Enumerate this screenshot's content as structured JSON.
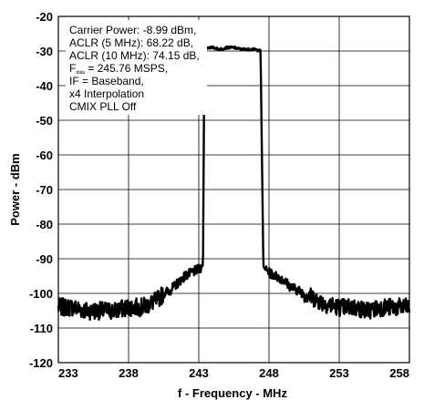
{
  "chart_data": {
    "type": "line",
    "title": "",
    "xlabel": "f - Frequency - MHz",
    "ylabel": "Power - dBm",
    "xlim": [
      233,
      258
    ],
    "ylim": [
      -120,
      -20
    ],
    "xticks": [
      "233",
      "238",
      "243",
      "248",
      "253",
      "258"
    ],
    "yticks": [
      "-20",
      "-30",
      "-40",
      "-50",
      "-60",
      "-70",
      "-80",
      "-90",
      "-100",
      "-110",
      "-120"
    ],
    "grid": true,
    "annotation": {
      "carrier_power": "Carrier Power: -8.99 dBm,",
      "aclr5": "ACLR (5 MHz): 68.22 dB,",
      "aclr10": "ACLR (10 MHz): 74.15 dB,",
      "fdata_prefix": "F",
      "fdata_sub": "data",
      "fdata_rest": " = 245.76 MSPS,",
      "if": "IF = Baseband,",
      "interp": "x4 Interpolation",
      "cmix": "CMIX  PLL Off"
    },
    "series": [
      {
        "x": [
          233,
          234,
          235,
          236,
          237,
          238,
          239,
          239.5,
          240,
          240.5,
          241,
          241.5,
          242,
          242.5,
          243,
          243.3,
          243.4,
          243.6,
          244,
          244.5,
          245,
          245.5,
          246,
          246.5,
          247,
          247.4,
          247.6,
          247.7,
          248,
          248.5,
          249,
          249.5,
          250,
          250.5,
          251,
          251.5,
          252,
          253,
          254,
          255,
          256,
          257,
          258
        ],
        "y": [
          -104,
          -104,
          -105,
          -105,
          -105,
          -104,
          -104,
          -103,
          -102,
          -100,
          -99,
          -97,
          -95,
          -94,
          -93,
          -92,
          -30,
          -29,
          -29,
          -29.5,
          -29,
          -29,
          -29.5,
          -29.5,
          -29.5,
          -30,
          -92,
          -93,
          -94,
          -95,
          -96,
          -98,
          -99,
          -100,
          -101,
          -102,
          -103,
          -104,
          -104,
          -105,
          -104,
          -104,
          -104
        ]
      }
    ]
  }
}
